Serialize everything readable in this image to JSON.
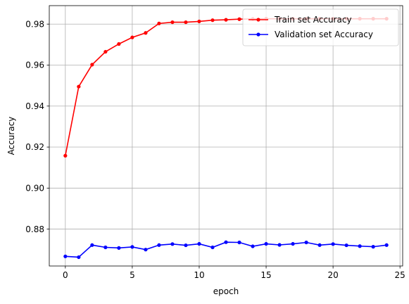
{
  "chart_data": {
    "type": "line",
    "title": "",
    "xlabel": "epoch",
    "ylabel": "Accuracy",
    "xlim": [
      -1.2,
      25.2
    ],
    "ylim": [
      0.862,
      0.989
    ],
    "grid": true,
    "legend_position": "top-right",
    "x": [
      0,
      1,
      2,
      3,
      4,
      5,
      6,
      7,
      8,
      9,
      10,
      11,
      12,
      13,
      14,
      15,
      16,
      17,
      18,
      19,
      20,
      21,
      22,
      23,
      24
    ],
    "x_ticks": [
      0,
      5,
      10,
      15,
      20,
      25
    ],
    "x_tick_labels": [
      "0",
      "5",
      "10",
      "15",
      "20",
      "25"
    ],
    "y_ticks": [
      0.88,
      0.9,
      0.92,
      0.94,
      0.96,
      0.98
    ],
    "y_tick_labels": [
      "0.88",
      "0.90",
      "0.92",
      "0.94",
      "0.96",
      "0.98"
    ],
    "series": [
      {
        "name": "Train set Accuracy",
        "color": "#ff0000",
        "values": [
          0.9158,
          0.9495,
          0.9602,
          0.9665,
          0.9703,
          0.9735,
          0.9757,
          0.9803,
          0.9809,
          0.9809,
          0.9813,
          0.9819,
          0.9821,
          0.9824,
          0.9825,
          0.9826,
          0.9826,
          0.9826,
          0.9826,
          0.9826,
          0.9826,
          0.9826,
          0.9826,
          0.9826,
          0.9826
        ]
      },
      {
        "name": "Validation set Accuracy",
        "color": "#0000ff",
        "values": [
          0.8667,
          0.8663,
          0.8722,
          0.8711,
          0.8708,
          0.8713,
          0.87,
          0.8722,
          0.8727,
          0.8721,
          0.8728,
          0.8711,
          0.8736,
          0.8735,
          0.8716,
          0.8728,
          0.8723,
          0.8728,
          0.8735,
          0.8722,
          0.8727,
          0.8721,
          0.8717,
          0.8714,
          0.8722
        ]
      }
    ]
  }
}
